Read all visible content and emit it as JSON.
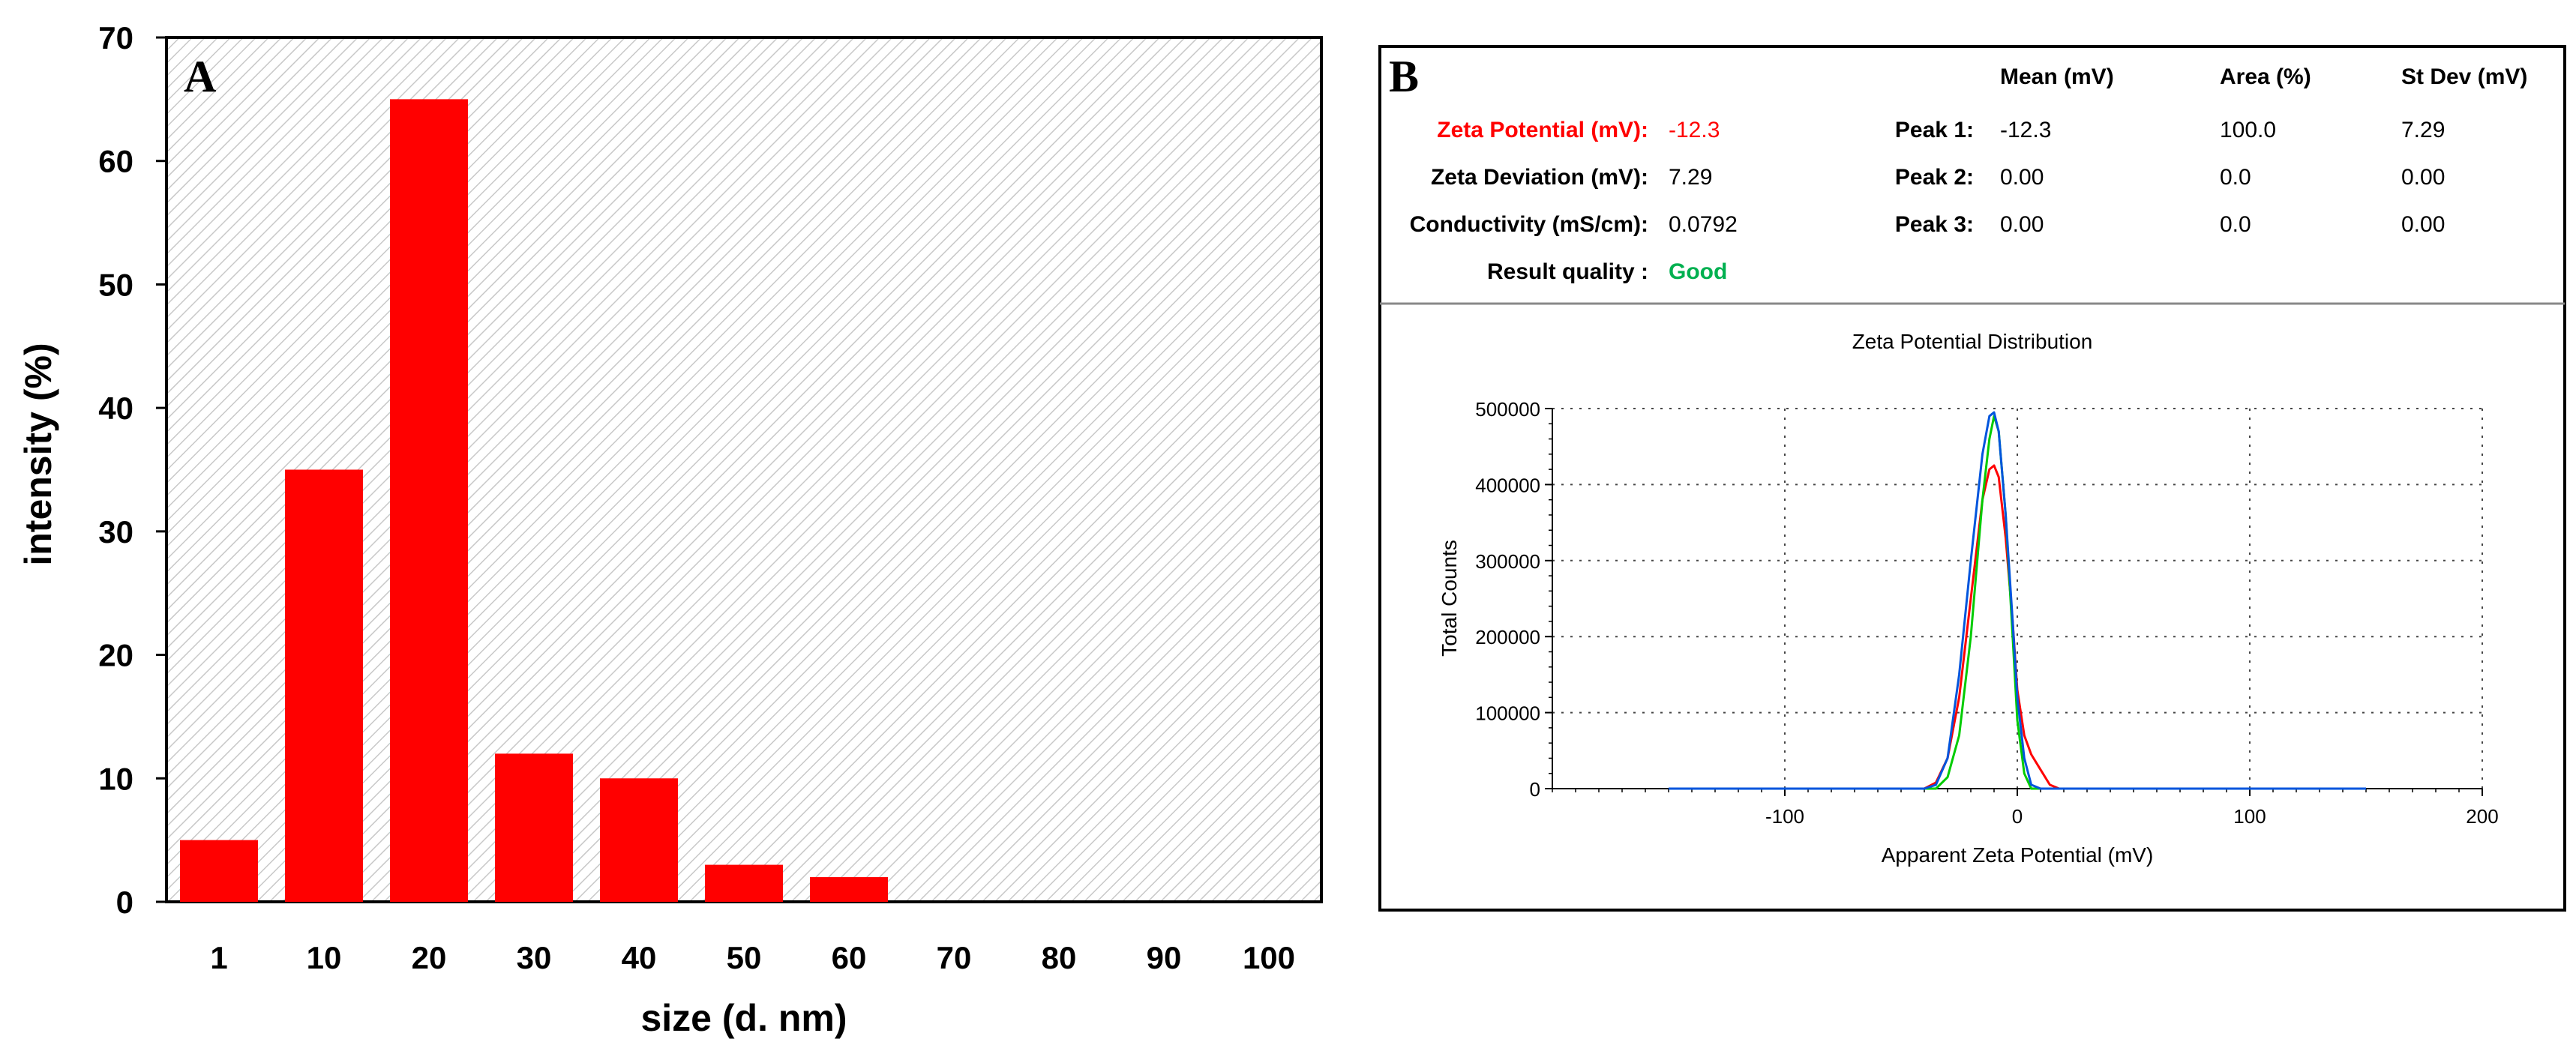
{
  "chart_data": [
    {
      "type": "bar",
      "panel_label": "A",
      "categories": [
        "1",
        "10",
        "20",
        "30",
        "40",
        "50",
        "60",
        "70",
        "80",
        "90",
        "100"
      ],
      "values": [
        5,
        35,
        65,
        12,
        10,
        3,
        2,
        0,
        0,
        0,
        0
      ],
      "ylim": [
        0,
        70
      ],
      "yticks": [
        0,
        10,
        20,
        30,
        40,
        50,
        60,
        70
      ],
      "xlabel": "size (d. nm)",
      "ylabel": "intensity (%)",
      "bar_color": "#ff0000",
      "grid": false
    },
    {
      "type": "line",
      "panel_label": "B",
      "title": "Zeta Potential Distribution",
      "xlabel": "Apparent Zeta Potential (mV)",
      "ylabel": "Total Counts",
      "xlim": [
        -200,
        200
      ],
      "ylim": [
        0,
        500000
      ],
      "xticks": [
        -100,
        0,
        100,
        200
      ],
      "yticks": [
        0,
        100000,
        200000,
        300000,
        400000,
        500000
      ],
      "grid": true,
      "series": [
        {
          "color": "#ff0000",
          "x": [
            -150,
            -50,
            -40,
            -35,
            -30,
            -25,
            -20,
            -15,
            -12,
            -10,
            -8,
            -5,
            -2,
            0,
            3,
            6,
            10,
            14,
            18,
            150
          ],
          "y": [
            0,
            0,
            0,
            8000,
            40000,
            120000,
            250000,
            380000,
            420000,
            425000,
            410000,
            330000,
            220000,
            130000,
            70000,
            45000,
            25000,
            5000,
            0,
            0
          ]
        },
        {
          "color": "#00cc00",
          "x": [
            -150,
            -50,
            -40,
            -35,
            -30,
            -25,
            -20,
            -15,
            -12,
            -10,
            -8,
            -5,
            -2,
            0,
            3,
            6,
            10,
            150
          ],
          "y": [
            0,
            0,
            0,
            0,
            15000,
            70000,
            200000,
            380000,
            460000,
            490000,
            470000,
            360000,
            200000,
            90000,
            20000,
            0,
            0,
            0
          ]
        },
        {
          "color": "#0055dd",
          "x": [
            -150,
            -50,
            -40,
            -35,
            -30,
            -25,
            -20,
            -15,
            -12,
            -10,
            -8,
            -5,
            -2,
            0,
            3,
            6,
            10,
            150
          ],
          "y": [
            0,
            0,
            0,
            5000,
            40000,
            150000,
            300000,
            440000,
            490000,
            495000,
            470000,
            360000,
            220000,
            120000,
            40000,
            5000,
            0,
            0
          ]
        }
      ]
    }
  ],
  "results": {
    "zeta_potential_label": "Zeta Potential (mV):",
    "zeta_potential_value": "-12.3",
    "zeta_deviation_label": "Zeta Deviation (mV):",
    "zeta_deviation_value": "7.29",
    "conductivity_label": "Conductivity (mS/cm):",
    "conductivity_value": "0.0792",
    "result_quality_label": "Result quality :",
    "result_quality_value": "Good",
    "columns": [
      "Mean (mV)",
      "Area (%)",
      "St Dev (mV)"
    ],
    "peaks": [
      {
        "label": "Peak 1:",
        "values": [
          "-12.3",
          "100.0",
          "7.29"
        ]
      },
      {
        "label": "Peak 2:",
        "values": [
          "0.00",
          "0.0",
          "0.00"
        ]
      },
      {
        "label": "Peak 3:",
        "values": [
          "0.00",
          "0.0",
          "0.00"
        ]
      }
    ],
    "highlight_color": "#ff0000",
    "good_color": "#00b050"
  }
}
